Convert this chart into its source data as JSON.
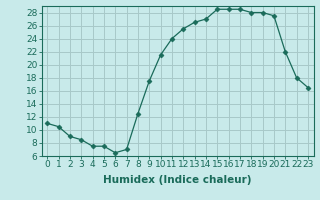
{
  "x": [
    0,
    1,
    2,
    3,
    4,
    5,
    6,
    7,
    8,
    9,
    10,
    11,
    12,
    13,
    14,
    15,
    16,
    17,
    18,
    19,
    20,
    21,
    22,
    23
  ],
  "y": [
    11,
    10.5,
    9,
    8.5,
    7.5,
    7.5,
    6.5,
    7,
    12.5,
    17.5,
    21.5,
    24,
    25.5,
    26.5,
    27,
    28.5,
    28.5,
    28.5,
    28,
    28,
    27.5,
    22,
    18,
    16.5
  ],
  "line_color": "#1a6b5a",
  "marker": "D",
  "marker_size": 2.5,
  "bg_color": "#c8eaea",
  "grid_color": "#a8c8c8",
  "xlabel": "Humidex (Indice chaleur)",
  "xlim": [
    -0.5,
    23.5
  ],
  "ylim": [
    6,
    29
  ],
  "yticks": [
    6,
    8,
    10,
    12,
    14,
    16,
    18,
    20,
    22,
    24,
    26,
    28
  ],
  "xticks": [
    0,
    1,
    2,
    3,
    4,
    5,
    6,
    7,
    8,
    9,
    10,
    11,
    12,
    13,
    14,
    15,
    16,
    17,
    18,
    19,
    20,
    21,
    22,
    23
  ],
  "tick_fontsize": 6.5,
  "xlabel_fontsize": 7.5
}
